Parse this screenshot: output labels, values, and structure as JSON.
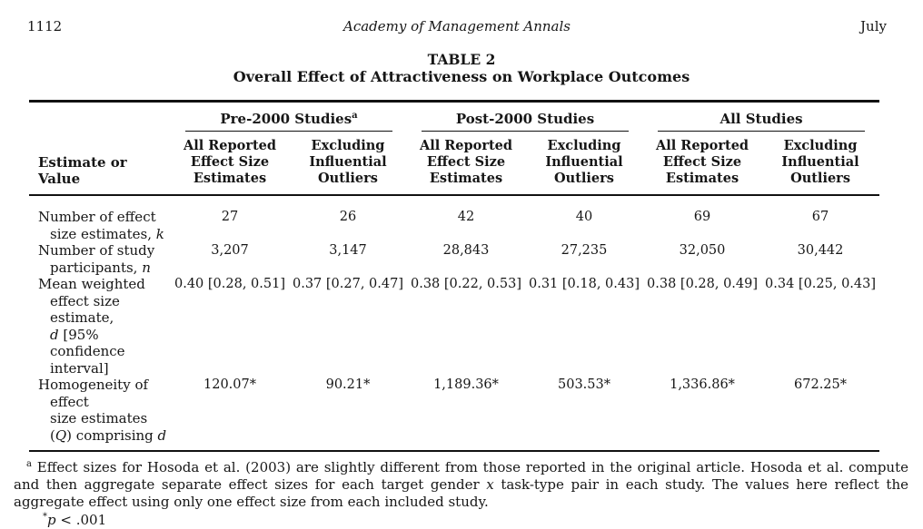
{
  "page": {
    "page_number": "1112",
    "journal": "Academy of Management Annals",
    "issue_month": "July"
  },
  "table": {
    "label": "TABLE 2",
    "title": "Overall Effect of Attractiveness on Workplace Outcomes",
    "corner_header": "Estimate or Value",
    "groups": [
      {
        "runs": [
          {
            "text": "Pre-2000 Studies"
          },
          {
            "text": "a",
            "sup": true
          }
        ]
      },
      {
        "runs": [
          {
            "text": "Post-2000 Studies"
          }
        ]
      },
      {
        "runs": [
          {
            "text": "All Studies"
          }
        ]
      }
    ],
    "sub_headers": [
      "All Reported Effect Size Estimates",
      "Excluding Influential Outliers",
      "All Reported Effect Size Estimates",
      "Excluding Influential Outliers",
      "All Reported Effect Size Estimates",
      "Excluding Influential Outliers"
    ],
    "rows": [
      {
        "label_runs": [
          {
            "text": "Number of effect"
          },
          {
            "br": true
          },
          {
            "text": "size estimates, "
          },
          {
            "text": "k",
            "italic": true
          }
        ],
        "values": [
          "27",
          "26",
          "42",
          "40",
          "69",
          "67"
        ]
      },
      {
        "label_runs": [
          {
            "text": "Number of study"
          },
          {
            "br": true
          },
          {
            "text": "participants, "
          },
          {
            "text": "n",
            "italic": true
          }
        ],
        "values": [
          "3,207",
          "3,147",
          "28,843",
          "27,235",
          "32,050",
          "30,442"
        ]
      },
      {
        "label_runs": [
          {
            "text": "Mean weighted"
          },
          {
            "br": true
          },
          {
            "text": "effect size estimate,"
          },
          {
            "br": true
          },
          {
            "text": "d",
            "italic": true
          },
          {
            "text": " [95% confidence"
          },
          {
            "br": true
          },
          {
            "text": "interval]"
          }
        ],
        "values": [
          "0.40 [0.28, 0.51]",
          "0.37 [0.27, 0.47]",
          "0.38 [0.22, 0.53]",
          "0.31 [0.18, 0.43]",
          "0.38 [0.28, 0.49]",
          "0.34 [0.25, 0.43]"
        ]
      },
      {
        "label_runs": [
          {
            "text": "Homogeneity of effect"
          },
          {
            "br": true
          },
          {
            "text": "size estimates"
          },
          {
            "br": true
          },
          {
            "text": "("
          },
          {
            "text": "Q",
            "italic": true
          },
          {
            "text": ") comprising "
          },
          {
            "text": "d",
            "italic": true
          }
        ],
        "values": [
          "120.07*",
          "90.21*",
          "1,189.36*",
          "503.53*",
          "1,336.86*",
          "672.25*"
        ]
      }
    ]
  },
  "footnotes": {
    "note_a_runs": [
      {
        "text": "a",
        "sup": true
      },
      {
        "text": " Effect sizes for Hosoda et al. (2003) are slightly different from those reported in the original article. Hosoda et al. compute and then aggregate separate effect sizes for each target gender "
      },
      {
        "text": "x",
        "italic": true
      },
      {
        "text": " task-type pair in each study. The values here reflect the aggregate effect using only one effect size from each included study."
      }
    ],
    "sig_runs": [
      {
        "text": "*",
        "sup": true
      },
      {
        "text": "p",
        "italic": true
      },
      {
        "text": " < .001"
      }
    ]
  }
}
